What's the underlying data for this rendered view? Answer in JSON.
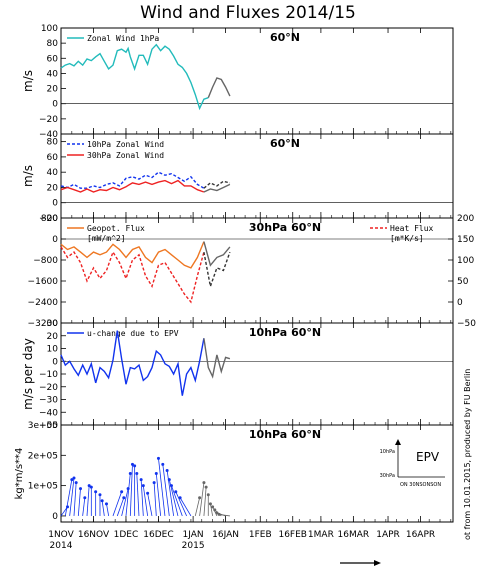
{
  "title": "Wind and Fluxes 2014/15",
  "credit": "ot from 10.01.2015, produced by FU Berlin",
  "colors": {
    "cyan": "#22bbbb",
    "blue": "#1133ee",
    "red": "#ee2222",
    "orange": "#ee7722",
    "gray": "#666666",
    "dotted": "#333333"
  },
  "x_axis": {
    "ticks": [
      {
        "day": 0,
        "label": "1NOV",
        "sub": "2014"
      },
      {
        "day": 15,
        "label": "16NOV",
        "sub": ""
      },
      {
        "day": 30,
        "label": "1DEC",
        "sub": ""
      },
      {
        "day": 45,
        "label": "16DEC",
        "sub": ""
      },
      {
        "day": 61,
        "label": "1JAN",
        "sub": "2015"
      },
      {
        "day": 76,
        "label": "16JAN",
        "sub": ""
      },
      {
        "day": 92,
        "label": "1FEB",
        "sub": ""
      },
      {
        "day": 107,
        "label": "16FEB",
        "sub": ""
      },
      {
        "day": 120,
        "label": "1MAR",
        "sub": ""
      },
      {
        "day": 135,
        "label": "16MAR",
        "sub": ""
      },
      {
        "day": 151,
        "label": "1APR",
        "sub": ""
      },
      {
        "day": 166,
        "label": "16APR",
        "sub": ""
      }
    ],
    "range": [
      0,
      181
    ]
  },
  "chart_data": [
    {
      "type": "line",
      "id": "p1",
      "title": "60°N",
      "ylabel": "m/s",
      "ylim": [
        -40,
        100
      ],
      "yticks": [
        -40,
        -20,
        0,
        20,
        40,
        60,
        80,
        100
      ],
      "legend": [
        {
          "name": "Zonal Wind 1hPa",
          "color": "cyan",
          "dash": false
        }
      ],
      "series": [
        {
          "color": "cyan",
          "dash": false,
          "x": [
            0,
            2,
            4,
            6,
            8,
            10,
            12,
            14,
            16,
            18,
            20,
            22,
            24,
            26,
            28,
            30,
            31,
            32,
            34,
            36,
            38,
            40,
            42,
            44,
            46,
            48,
            50,
            52,
            54,
            56,
            58,
            60,
            62,
            64,
            66,
            68
          ],
          "y": [
            47,
            51,
            53,
            50,
            56,
            51,
            59,
            57,
            62,
            66,
            56,
            46,
            51,
            70,
            72,
            68,
            73,
            62,
            46,
            64,
            64,
            52,
            72,
            78,
            70,
            76,
            72,
            63,
            52,
            48,
            40,
            28,
            12,
            -6,
            6,
            8
          ]
        },
        {
          "color": "gray",
          "dash": false,
          "x": [
            68,
            70,
            72,
            74,
            76,
            78
          ],
          "y": [
            8,
            22,
            34,
            32,
            22,
            10
          ]
        }
      ]
    },
    {
      "type": "line",
      "id": "p2",
      "title": "60°N",
      "ylabel": "m/s",
      "ylim": [
        -20,
        90
      ],
      "yticks": [
        -20,
        0,
        20,
        40,
        60,
        80
      ],
      "legend": [
        {
          "name": "10hPa Zonal Wind",
          "color": "blue",
          "dash": true
        },
        {
          "name": "30hPa Zonal Wind",
          "color": "red",
          "dash": false
        }
      ],
      "series": [
        {
          "color": "blue",
          "dash": true,
          "x": [
            0,
            3,
            6,
            9,
            12,
            15,
            18,
            21,
            24,
            27,
            30,
            33,
            36,
            39,
            42,
            45,
            48,
            51,
            54,
            57,
            60,
            63,
            66
          ],
          "y": [
            22,
            20,
            24,
            19,
            19,
            22,
            20,
            24,
            26,
            22,
            32,
            34,
            31,
            36,
            33,
            40,
            36,
            38,
            33,
            28,
            34,
            24,
            19
          ]
        },
        {
          "color": "red",
          "dash": false,
          "x": [
            0,
            3,
            6,
            9,
            12,
            15,
            18,
            21,
            24,
            27,
            30,
            33,
            36,
            39,
            42,
            45,
            48,
            51,
            54,
            57,
            60,
            63,
            66
          ],
          "y": [
            17,
            20,
            17,
            14,
            18,
            14,
            17,
            16,
            20,
            17,
            21,
            26,
            24,
            27,
            24,
            27,
            29,
            25,
            29,
            22,
            22,
            17,
            14
          ]
        },
        {
          "color": "dotted",
          "dash": true,
          "x": [
            66,
            69,
            72,
            75,
            78
          ],
          "y": [
            19,
            26,
            22,
            28,
            26
          ]
        },
        {
          "color": "gray",
          "dash": false,
          "x": [
            66,
            69,
            72,
            75,
            78
          ],
          "y": [
            14,
            18,
            16,
            20,
            24
          ]
        }
      ]
    },
    {
      "type": "line",
      "id": "p3",
      "title": "30hPa 60°N",
      "ylabel": "",
      "ylim": [
        -3200,
        800
      ],
      "yticks": [
        -3200,
        -2400,
        -1600,
        -800,
        0,
        800
      ],
      "ylim_right": [
        -50,
        200
      ],
      "yticks_right": [
        -50,
        0,
        50,
        100,
        150,
        200
      ],
      "legend": [
        {
          "name": "Geopot. Flux",
          "unit": "[mW/m^2]",
          "color": "orange",
          "dash": false
        },
        {
          "name": "Heat Flux",
          "unit": "[m*K/s]",
          "color": "red",
          "dash": true
        }
      ],
      "series": [
        {
          "color": "red",
          "dash": true,
          "x": [
            0,
            3,
            6,
            9,
            12,
            15,
            18,
            21,
            24,
            27,
            30,
            33,
            36,
            39,
            42,
            45,
            48,
            51,
            54,
            57,
            60,
            63,
            66
          ],
          "y": [
            -300,
            -700,
            -500,
            -900,
            -1600,
            -1100,
            -1500,
            -1200,
            -500,
            -900,
            -1500,
            -800,
            -600,
            -1400,
            -1800,
            -1000,
            -900,
            -1300,
            -1700,
            -2100,
            -2400,
            -1400,
            -500
          ]
        },
        {
          "color": "orange",
          "dash": false,
          "x": [
            0,
            3,
            6,
            9,
            12,
            15,
            18,
            21,
            24,
            27,
            30,
            33,
            36,
            39,
            42,
            45,
            48,
            51,
            54,
            57,
            60,
            63,
            66
          ],
          "y": [
            -200,
            -400,
            -300,
            -500,
            -700,
            -500,
            -600,
            -500,
            -200,
            -400,
            -700,
            -400,
            -300,
            -700,
            -900,
            -500,
            -400,
            -600,
            -800,
            -1000,
            -1100,
            -700,
            -100
          ]
        },
        {
          "color": "dotted",
          "dash": true,
          "x": [
            66,
            69,
            72,
            75,
            78
          ],
          "y": [
            -500,
            -1800,
            -1100,
            -1200,
            -500
          ]
        },
        {
          "color": "gray",
          "dash": false,
          "x": [
            66,
            69,
            72,
            75,
            78
          ],
          "y": [
            -100,
            -1000,
            -700,
            -600,
            -300
          ]
        }
      ]
    },
    {
      "type": "line",
      "id": "p4",
      "title": "10hPa 60°N",
      "ylabel": "m/s per day",
      "ylim": [
        -50,
        30
      ],
      "yticks": [
        -50,
        -40,
        -30,
        -20,
        -10,
        0,
        10,
        20,
        30
      ],
      "legend": [
        {
          "name": "u-change due to EPV",
          "color": "blue",
          "dash": false
        }
      ],
      "series": [
        {
          "color": "blue",
          "dash": false,
          "x": [
            0,
            2,
            4,
            6,
            8,
            10,
            12,
            14,
            16,
            18,
            20,
            22,
            24,
            26,
            28,
            30,
            32,
            34,
            36,
            38,
            40,
            42,
            44,
            46,
            48,
            50,
            52,
            54,
            56,
            58,
            60,
            62,
            64,
            66
          ],
          "y": [
            5,
            -3,
            0,
            -6,
            -11,
            -3,
            -10,
            -2,
            -17,
            -5,
            -8,
            -13,
            1,
            24,
            2,
            -18,
            -5,
            -6,
            -3,
            -15,
            -12,
            -5,
            8,
            5,
            -2,
            -4,
            -10,
            -2,
            -27,
            -10,
            -5,
            -15,
            0,
            18
          ]
        },
        {
          "color": "gray",
          "dash": false,
          "x": [
            66,
            68,
            70,
            72,
            74,
            76,
            78
          ],
          "y": [
            18,
            -5,
            -12,
            5,
            -8,
            3,
            2
          ]
        }
      ]
    },
    {
      "type": "vector",
      "id": "p5",
      "title": "10hPa 60°N",
      "ylabel": "kg*m/s**4",
      "ylim": [
        -20000,
        300000
      ],
      "yticks": [
        0,
        100000,
        200000,
        300000
      ],
      "ytick_labels": [
        "0",
        "1e+05",
        "2e+05",
        "3e+05"
      ],
      "inset": {
        "label": "EPV",
        "ylabel_top": "10hPa",
        "ylabel_bottom": "30hPa",
        "xlabel": "ON 30NSONSON"
      },
      "origins_blue": [
        0,
        2,
        4,
        6,
        8,
        10,
        12,
        14,
        16,
        18,
        20,
        22,
        24,
        26,
        28,
        30,
        32,
        34,
        36,
        38,
        40,
        42,
        44,
        46,
        48,
        50,
        52,
        54,
        56,
        58,
        60
      ],
      "tips_blue": [
        [
          3,
          30000
        ],
        [
          5,
          120000
        ],
        [
          6,
          125000
        ],
        [
          7,
          110000
        ],
        [
          9,
          90000
        ],
        [
          11,
          60000
        ],
        [
          13,
          100000
        ],
        [
          14,
          95000
        ],
        [
          16,
          80000
        ],
        [
          18,
          70000
        ],
        [
          19,
          50000
        ],
        [
          21,
          40000
        ],
        [
          28,
          80000
        ],
        [
          29,
          60000
        ],
        [
          31,
          90000
        ],
        [
          32,
          140000
        ],
        [
          33,
          170000
        ],
        [
          34,
          165000
        ],
        [
          35,
          140000
        ],
        [
          37,
          120000
        ],
        [
          38,
          100000
        ],
        [
          40,
          75000
        ],
        [
          43,
          110000
        ],
        [
          44,
          140000
        ],
        [
          45,
          190000
        ],
        [
          47,
          170000
        ],
        [
          49,
          150000
        ],
        [
          50,
          120000
        ],
        [
          51,
          100000
        ],
        [
          53,
          80000
        ],
        [
          55,
          60000
        ]
      ],
      "origins_gray": [
        62,
        64,
        66,
        68,
        70,
        72,
        74,
        76,
        78
      ],
      "tips_gray": [
        [
          64,
          60000
        ],
        [
          66,
          110000
        ],
        [
          67,
          95000
        ],
        [
          68,
          70000
        ],
        [
          69,
          40000
        ],
        [
          70,
          30000
        ],
        [
          71,
          20000
        ],
        [
          72,
          10000
        ],
        [
          73,
          5000
        ]
      ]
    }
  ]
}
